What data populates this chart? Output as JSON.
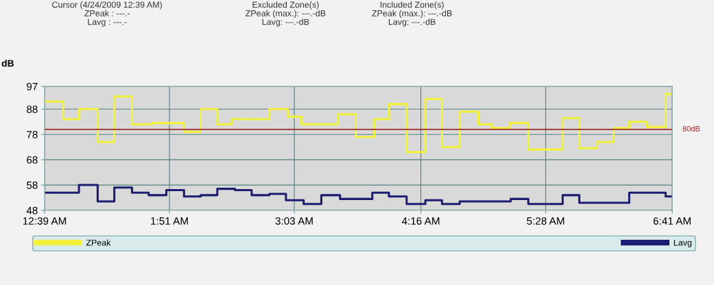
{
  "chart_data": {
    "type": "step",
    "ylabel": "dB",
    "annotations": [
      "Cursor (4/24/2009 12:39 AM)\nZPeak : ---.-\nLavg : ---.-",
      "Excluded Zone(s)\nZPeak (max.): ---.-dB\nLavg: ---.-dB",
      "Included Zone(s)\nZPeak (max.): ---.-dB\nLavg: ---.-dB"
    ],
    "series": [
      {
        "name": "ZPeak",
        "color": "#f2f23a",
        "x": [
          0.65,
          0.83,
          0.98,
          1.16,
          1.32,
          1.49,
          1.69,
          1.99,
          2.15,
          2.31,
          2.45,
          2.81,
          2.99,
          3.12,
          3.47,
          3.64,
          3.82,
          3.96,
          4.13,
          4.31,
          4.47,
          4.64,
          4.82,
          4.95,
          5.12,
          5.3,
          5.63,
          5.79,
          5.96,
          6.12,
          6.27,
          6.44,
          6.62,
          6.68
        ],
        "values": [
          91,
          84,
          88,
          75,
          93,
          82,
          82.5,
          79,
          88,
          82,
          84,
          88,
          85,
          82,
          86,
          77,
          84,
          90,
          71,
          92,
          73,
          87,
          82,
          80.5,
          82.5,
          72,
          84.5,
          72.5,
          75,
          80.5,
          83,
          81,
          94,
          94
        ]
      },
      {
        "name": "Lavg",
        "color": "#1c1c72",
        "x": [
          0.65,
          0.98,
          1.16,
          1.32,
          1.49,
          1.65,
          1.82,
          1.99,
          2.15,
          2.31,
          2.48,
          2.64,
          2.81,
          2.97,
          3.14,
          3.31,
          3.49,
          3.8,
          3.96,
          4.13,
          4.31,
          4.47,
          4.64,
          5.13,
          5.3,
          5.63,
          5.79,
          6.27,
          6.62,
          6.68
        ],
        "values": [
          55,
          58,
          51.5,
          57,
          55,
          54,
          56,
          53.5,
          54,
          56.5,
          56,
          54,
          54.5,
          52,
          50.5,
          54,
          52.5,
          55,
          53.5,
          50.5,
          52,
          50.5,
          51.5,
          52.5,
          50.5,
          54,
          51,
          55,
          53.5,
          53.5
        ]
      }
    ],
    "xlim": [
      0.65,
      6.6833
    ],
    "xticks": [
      {
        "value": 0.65,
        "label": "12:39 AM"
      },
      {
        "value": 1.85,
        "label": "1:51 AM"
      },
      {
        "value": 3.05,
        "label": "3:03 AM"
      },
      {
        "value": 4.2667,
        "label": "4:16 AM"
      },
      {
        "value": 5.4667,
        "label": "5:28 AM"
      },
      {
        "value": 6.6833,
        "label": "6:41 AM"
      }
    ],
    "ylim": [
      48,
      97
    ],
    "yticks": [
      48,
      58,
      68,
      78,
      88,
      97
    ],
    "ref_lines": [
      {
        "axis": "y",
        "value": 80,
        "label": "80dB",
        "color": "#9c2a2a"
      }
    ],
    "grid": true,
    "legend": "bottom"
  }
}
